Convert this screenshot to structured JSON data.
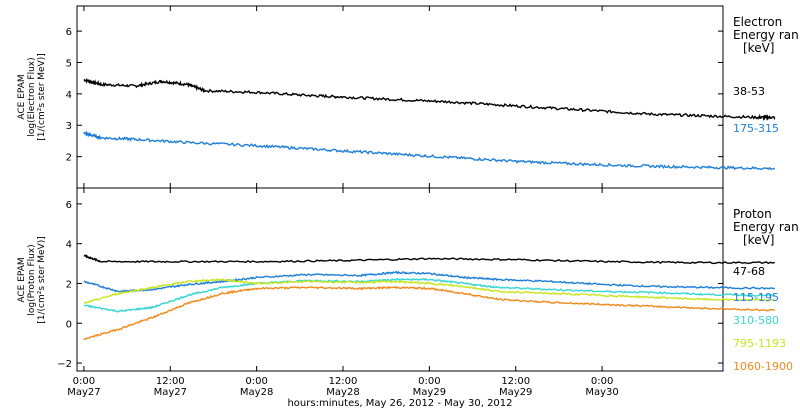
{
  "chart_data": [
    {
      "type": "line",
      "panel": "electron",
      "title": "",
      "ylabel_lines": [
        "ACE EPAM",
        "log(Electron Flux)",
        "[1/(cm²s ster MeV)]"
      ],
      "ylim": [
        1.0,
        6.8
      ],
      "yticks": [
        "2",
        "3",
        "4",
        "5",
        "6"
      ],
      "yticks_values": [
        2,
        3,
        4,
        5,
        6
      ],
      "legend_title": [
        "Electron",
        "Energy ran",
        "[keV]"
      ],
      "series": [
        {
          "name": "38-53",
          "color": "#000000",
          "x": [
            0.0,
            0.1,
            0.3,
            0.45,
            0.6,
            0.7,
            1.0,
            1.3,
            1.5,
            1.8,
            2.1,
            2.4,
            2.7,
            3.0,
            3.3,
            3.6,
            3.9,
            4.0
          ],
          "values": [
            4.45,
            4.3,
            4.25,
            4.4,
            4.3,
            4.1,
            4.05,
            3.95,
            3.9,
            3.82,
            3.75,
            3.65,
            3.55,
            3.45,
            3.35,
            3.3,
            3.25,
            3.25
          ]
        },
        {
          "name": "175-315",
          "color": "#1e7fd9",
          "x": [
            0.0,
            0.1,
            0.3,
            0.6,
            1.0,
            1.3,
            1.6,
            1.9,
            2.2,
            2.5,
            2.8,
            3.1,
            3.4,
            3.7,
            4.0
          ],
          "values": [
            2.75,
            2.6,
            2.55,
            2.45,
            2.35,
            2.25,
            2.15,
            2.05,
            1.95,
            1.85,
            1.78,
            1.72,
            1.68,
            1.65,
            1.62
          ]
        }
      ]
    },
    {
      "type": "line",
      "panel": "proton",
      "title": "",
      "ylabel_lines": [
        "ACE EPAM",
        "log(Proton Flux)",
        "[1/(cm²s ster MeV)]"
      ],
      "ylim": [
        -2.4,
        6.8
      ],
      "yticks": [
        "−2",
        "0",
        "2",
        "4",
        "6"
      ],
      "yticks_values": [
        -2,
        0,
        2,
        4,
        6
      ],
      "legend_title": [
        "Proton",
        "Energy ran",
        "[keV]"
      ],
      "series": [
        {
          "name": "47-68",
          "color": "#000000",
          "x": [
            0.0,
            0.1,
            0.5,
            1.0,
            1.5,
            2.0,
            2.5,
            3.0,
            3.5,
            4.0
          ],
          "values": [
            3.4,
            3.1,
            3.1,
            3.1,
            3.15,
            3.25,
            3.2,
            3.1,
            3.05,
            3.05
          ]
        },
        {
          "name": "115-195",
          "color": "#1e7fd9",
          "x": [
            0.0,
            0.2,
            0.4,
            0.6,
            0.8,
            1.0,
            1.3,
            1.6,
            1.8,
            2.0,
            2.2,
            2.4,
            2.7,
            3.0,
            3.3,
            3.6,
            4.0
          ],
          "values": [
            2.1,
            1.6,
            1.7,
            1.95,
            2.1,
            2.3,
            2.45,
            2.4,
            2.55,
            2.5,
            2.3,
            2.2,
            2.1,
            1.95,
            1.85,
            1.8,
            1.75
          ]
        },
        {
          "name": "310-580",
          "color": "#38d5d5",
          "x": [
            0.0,
            0.2,
            0.4,
            0.6,
            0.8,
            1.0,
            1.3,
            1.6,
            1.8,
            2.0,
            2.2,
            2.4,
            2.7,
            3.0,
            3.3,
            3.6,
            4.0
          ],
          "values": [
            0.9,
            0.6,
            0.8,
            1.4,
            1.8,
            2.0,
            2.15,
            2.1,
            2.2,
            2.2,
            2.0,
            1.8,
            1.7,
            1.6,
            1.55,
            1.45,
            1.4
          ]
        },
        {
          "name": "795-1193",
          "color": "#c8e620",
          "x": [
            0.0,
            0.2,
            0.4,
            0.6,
            0.8,
            1.0,
            1.3,
            1.6,
            1.8,
            2.0,
            2.2,
            2.4,
            2.7,
            3.0,
            3.3,
            3.6,
            4.0
          ],
          "values": [
            1.0,
            1.5,
            1.8,
            2.1,
            2.2,
            2.0,
            2.1,
            2.05,
            2.1,
            2.0,
            1.85,
            1.6,
            1.5,
            1.4,
            1.3,
            1.2,
            1.15
          ]
        },
        {
          "name": "1060-1900",
          "color": "#f08a1c",
          "x": [
            0.0,
            0.2,
            0.4,
            0.6,
            0.8,
            1.0,
            1.3,
            1.6,
            1.8,
            2.0,
            2.2,
            2.4,
            2.7,
            3.0,
            3.3,
            3.6,
            4.0
          ],
          "values": [
            -0.8,
            -0.3,
            0.3,
            1.0,
            1.5,
            1.75,
            1.8,
            1.75,
            1.8,
            1.75,
            1.5,
            1.2,
            1.05,
            0.95,
            0.85,
            0.75,
            0.65
          ]
        }
      ]
    }
  ],
  "x_axis": {
    "ticks": [
      {
        "x": 0.0,
        "time": "0:00",
        "date": "May27"
      },
      {
        "x": 0.5,
        "time": "12:00",
        "date": "May27"
      },
      {
        "x": 1.0,
        "time": "0:00",
        "date": "May28"
      },
      {
        "x": 1.5,
        "time": "12:00",
        "date": "May28"
      },
      {
        "x": 2.0,
        "time": "0:00",
        "date": "May29"
      },
      {
        "x": 2.5,
        "time": "12:00",
        "date": "May29"
      },
      {
        "x": 3.0,
        "time": "0:00",
        "date": "May30"
      }
    ],
    "xlim": [
      -0.04,
      3.7
    ],
    "label": "hours:minutes, May 26, 2012 - May 30, 2012"
  }
}
